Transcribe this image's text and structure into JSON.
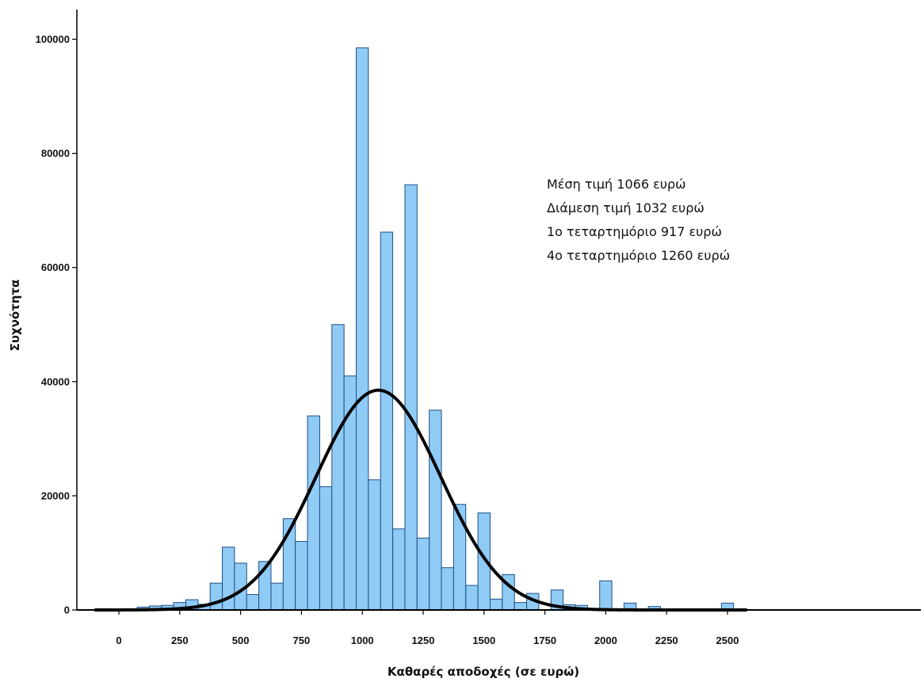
{
  "chart_data": {
    "type": "bar",
    "title": "",
    "xlabel": "Καθαρές αποδοχές (σε ευρώ)",
    "ylabel": "Συχνότητα",
    "xlim": [
      -100,
      2580
    ],
    "ylim": [
      0,
      105000
    ],
    "xticks": [
      0,
      250,
      500,
      750,
      1000,
      1250,
      1500,
      1750,
      2000,
      2250,
      2500
    ],
    "yticks": [
      0,
      20000,
      40000,
      60000,
      80000,
      100000
    ],
    "bin_width": 50,
    "bins": [
      {
        "x0": 75,
        "x1": 125,
        "value": 500
      },
      {
        "x0": 125,
        "x1": 175,
        "value": 700
      },
      {
        "x0": 175,
        "x1": 225,
        "value": 800
      },
      {
        "x0": 225,
        "x1": 275,
        "value": 1300
      },
      {
        "x0": 275,
        "x1": 325,
        "value": 1800
      },
      {
        "x0": 325,
        "x1": 375,
        "value": 1000
      },
      {
        "x0": 375,
        "x1": 425,
        "value": 4700
      },
      {
        "x0": 425,
        "x1": 475,
        "value": 11000
      },
      {
        "x0": 475,
        "x1": 525,
        "value": 8200
      },
      {
        "x0": 525,
        "x1": 575,
        "value": 2700
      },
      {
        "x0": 575,
        "x1": 625,
        "value": 8500
      },
      {
        "x0": 625,
        "x1": 675,
        "value": 4700
      },
      {
        "x0": 675,
        "x1": 725,
        "value": 16000
      },
      {
        "x0": 725,
        "x1": 775,
        "value": 12000
      },
      {
        "x0": 775,
        "x1": 825,
        "value": 34000
      },
      {
        "x0": 825,
        "x1": 875,
        "value": 21600
      },
      {
        "x0": 875,
        "x1": 925,
        "value": 50000
      },
      {
        "x0": 925,
        "x1": 975,
        "value": 41000
      },
      {
        "x0": 975,
        "x1": 1025,
        "value": 98500
      },
      {
        "x0": 1025,
        "x1": 1075,
        "value": 22800
      },
      {
        "x0": 1075,
        "x1": 1125,
        "value": 66200
      },
      {
        "x0": 1125,
        "x1": 1175,
        "value": 14200
      },
      {
        "x0": 1175,
        "x1": 1225,
        "value": 74500
      },
      {
        "x0": 1225,
        "x1": 1275,
        "value": 12600
      },
      {
        "x0": 1275,
        "x1": 1325,
        "value": 35000
      },
      {
        "x0": 1325,
        "x1": 1375,
        "value": 7400
      },
      {
        "x0": 1375,
        "x1": 1425,
        "value": 18500
      },
      {
        "x0": 1425,
        "x1": 1475,
        "value": 4300
      },
      {
        "x0": 1475,
        "x1": 1525,
        "value": 17000
      },
      {
        "x0": 1525,
        "x1": 1575,
        "value": 1900
      },
      {
        "x0": 1575,
        "x1": 1625,
        "value": 6200
      },
      {
        "x0": 1625,
        "x1": 1675,
        "value": 1300
      },
      {
        "x0": 1675,
        "x1": 1725,
        "value": 2900
      },
      {
        "x0": 1775,
        "x1": 1825,
        "value": 3500
      },
      {
        "x0": 1825,
        "x1": 1875,
        "value": 900
      },
      {
        "x0": 1875,
        "x1": 1925,
        "value": 800
      },
      {
        "x0": 1975,
        "x1": 2025,
        "value": 5100
      },
      {
        "x0": 2075,
        "x1": 2125,
        "value": 1200
      },
      {
        "x0": 2175,
        "x1": 2225,
        "value": 600
      },
      {
        "x0": 2475,
        "x1": 2525,
        "value": 1200
      }
    ],
    "normal_curve": {
      "mean": 1066,
      "sd": 256,
      "peak": 38500
    },
    "annotations": [
      "Μέση τιμή 1066 ευρώ",
      "Διάμεση τιμή 1032 ευρώ",
      "1ο τεταρτημόριο 917 ευρώ",
      "4ο τεταρτημόριο 1260 ευρώ"
    ],
    "colors": {
      "bar_fill": "#8fcbf5",
      "bar_stroke": "#1f4f86",
      "curve": "#000000",
      "axis": "#000000"
    },
    "grid": false,
    "legend": "none"
  }
}
